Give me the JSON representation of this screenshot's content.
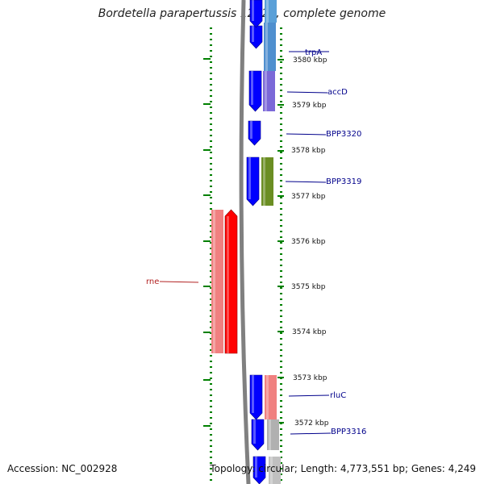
{
  "title": "Bordetella parapertussis 12822, complete genome",
  "footer": {
    "accession": "Accession: NC_002928",
    "topology": "Topology: circular; Length: 4,773,551 bp; Genes: 4,249"
  },
  "colors": {
    "backbone": "#808080",
    "forward_gene": "#ff0000",
    "forward_gene_light": "#f08080",
    "reverse_gene": "#0000ff",
    "tick_green": "#008000",
    "label_blue": "#00008b",
    "label_red": "#b22222"
  },
  "ruler": {
    "unit": "kbp",
    "labels": [
      "3580 kbp",
      "3579 kbp",
      "3578 kbp",
      "3577 kbp",
      "3576 kbp",
      "3575 kbp",
      "3574 kbp",
      "3573 kbp",
      "3572 kbp"
    ]
  },
  "genes": [
    {
      "name": "trpA",
      "strand": "-",
      "cog_color": "#4f8fcf"
    },
    {
      "name": "accD",
      "strand": "-",
      "cog_color": "#7b68d8"
    },
    {
      "name": "BPP3320",
      "strand": "-",
      "cog_color": ""
    },
    {
      "name": "BPP3319",
      "strand": "-",
      "cog_color": "#6b8e23"
    },
    {
      "name": "rne",
      "strand": "+",
      "cog_color": "#f08080"
    },
    {
      "name": "rluC",
      "strand": "-",
      "cog_color": "#f08080"
    },
    {
      "name": "BPP3316",
      "strand": "-",
      "cog_color": "#b0b0b0"
    }
  ]
}
